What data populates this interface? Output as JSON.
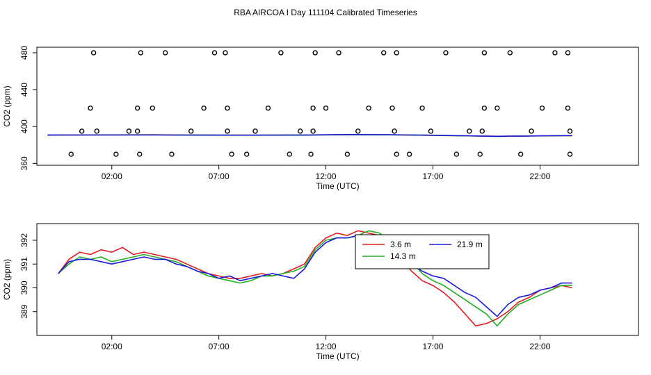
{
  "title": "RBA AIRCOA I  Day 111104  Calibrated Timeseries",
  "colors": {
    "red": "#e41a1c",
    "green": "#1fae1f",
    "blue": "#1a1adc"
  },
  "chart_data": [
    {
      "type": "scatter",
      "xlabel": "Time (UTC)",
      "ylabel": "CO2 (ppm)",
      "xlim": [
        -1.5,
        26.6
      ],
      "ylim": [
        358,
        486
      ],
      "x_ticks": [
        2,
        7,
        12,
        17,
        22
      ],
      "x_tick_labels": [
        "02:00",
        "07:00",
        "12:00",
        "17:00",
        "22:00"
      ],
      "y_ticks": [
        360,
        400,
        440,
        480
      ],
      "y_tick_labels": [
        "360",
        "400",
        "440",
        "480"
      ],
      "grid": false,
      "points": [
        [
          0.1,
          370
        ],
        [
          0.6,
          395
        ],
        [
          1.0,
          420
        ],
        [
          1.15,
          480
        ],
        [
          1.3,
          395
        ],
        [
          2.2,
          370
        ],
        [
          2.8,
          395
        ],
        [
          3.2,
          395
        ],
        [
          3.2,
          420
        ],
        [
          3.3,
          370
        ],
        [
          3.35,
          480
        ],
        [
          3.9,
          420
        ],
        [
          4.5,
          480
        ],
        [
          4.8,
          370
        ],
        [
          5.7,
          395
        ],
        [
          6.3,
          420
        ],
        [
          6.8,
          480
        ],
        [
          7.3,
          480
        ],
        [
          7.4,
          420
        ],
        [
          7.4,
          395
        ],
        [
          7.6,
          370
        ],
        [
          8.3,
          370
        ],
        [
          8.7,
          395
        ],
        [
          9.3,
          420
        ],
        [
          9.9,
          480
        ],
        [
          10.3,
          370
        ],
        [
          10.8,
          395
        ],
        [
          11.3,
          370
        ],
        [
          11.4,
          420
        ],
        [
          11.4,
          395
        ],
        [
          11.5,
          480
        ],
        [
          12.0,
          420
        ],
        [
          12.6,
          480
        ],
        [
          13.0,
          370
        ],
        [
          13.5,
          395
        ],
        [
          14.0,
          420
        ],
        [
          14.7,
          480
        ],
        [
          15.1,
          420
        ],
        [
          15.2,
          395
        ],
        [
          15.3,
          480
        ],
        [
          15.3,
          370
        ],
        [
          15.9,
          370
        ],
        [
          16.5,
          420
        ],
        [
          16.9,
          395
        ],
        [
          17.6,
          480
        ],
        [
          18.1,
          370
        ],
        [
          18.7,
          395
        ],
        [
          19.2,
          370
        ],
        [
          19.3,
          395
        ],
        [
          19.4,
          420
        ],
        [
          19.4,
          480
        ],
        [
          20.0,
          420
        ],
        [
          20.6,
          480
        ],
        [
          21.1,
          370
        ],
        [
          21.6,
          395
        ],
        [
          22.1,
          420
        ],
        [
          22.7,
          480
        ],
        [
          23.3,
          480
        ],
        [
          23.3,
          420
        ],
        [
          23.4,
          395
        ],
        [
          23.4,
          370
        ]
      ],
      "series": [
        {
          "color": "red",
          "x": [
            -1,
            4,
            8,
            11,
            13,
            15,
            17,
            20,
            23.5
          ],
          "y": [
            390.8,
            391.0,
            390.7,
            390.8,
            391.2,
            391.0,
            390.4,
            389.5,
            390.1
          ]
        },
        {
          "color": "green",
          "x": [
            -1,
            4,
            8,
            11,
            13,
            15,
            17,
            20,
            23.5
          ],
          "y": [
            390.8,
            391.0,
            390.6,
            390.7,
            391.1,
            391.0,
            390.5,
            389.3,
            390.2
          ]
        },
        {
          "color": "blue",
          "x": [
            -1,
            4,
            8,
            11,
            13,
            15,
            17,
            20,
            23.5
          ],
          "y": [
            390.8,
            390.9,
            390.6,
            390.8,
            391.3,
            391.1,
            390.6,
            389.4,
            390.2
          ]
        }
      ]
    },
    {
      "type": "line",
      "xlabel": "Time (UTC)",
      "ylabel": "CO2 (ppm)",
      "xlim": [
        -1.5,
        26.6
      ],
      "ylim": [
        388,
        392.7
      ],
      "x_ticks": [
        2,
        7,
        12,
        17,
        22
      ],
      "x_tick_labels": [
        "02:00",
        "07:00",
        "12:00",
        "17:00",
        "22:00"
      ],
      "y_ticks": [
        389,
        390,
        391,
        392
      ],
      "y_tick_labels": [
        "389",
        "390",
        "391",
        "392"
      ],
      "grid": false,
      "legend": {
        "placement": "top-right-center"
      },
      "series": [
        {
          "name": "3.6 m",
          "color": "red",
          "x": [
            -0.5,
            0,
            0.5,
            1,
            1.5,
            2,
            2.5,
            3,
            3.5,
            4,
            4.5,
            5,
            5.5,
            6,
            6.5,
            7,
            7.5,
            8,
            8.5,
            9,
            9.5,
            10,
            10.5,
            11,
            11.5,
            12,
            12.5,
            13,
            13.5,
            14,
            14.5,
            15,
            15.5,
            16,
            16.5,
            17,
            17.5,
            18,
            18.5,
            19,
            19.5,
            20,
            20.5,
            21,
            21.5,
            22,
            22.5,
            23,
            23.5
          ],
          "y": [
            390.6,
            391.2,
            391.5,
            391.4,
            391.6,
            391.5,
            391.7,
            391.4,
            391.5,
            391.4,
            391.3,
            391.2,
            391.0,
            390.8,
            390.6,
            390.5,
            390.4,
            390.4,
            390.5,
            390.6,
            390.5,
            390.6,
            390.8,
            391.0,
            391.7,
            392.1,
            392.3,
            392.2,
            392.4,
            392.3,
            392.2,
            391.8,
            391.2,
            390.7,
            390.3,
            390.1,
            389.8,
            389.4,
            388.9,
            388.4,
            388.5,
            388.7,
            389.0,
            389.4,
            389.6,
            389.9,
            390.0,
            390.1,
            390.0
          ]
        },
        {
          "name": "14.3 m",
          "color": "green",
          "x": [
            -0.5,
            0,
            0.5,
            1,
            1.5,
            2,
            2.5,
            3,
            3.5,
            4,
            4.5,
            5,
            5.5,
            6,
            6.5,
            7,
            7.5,
            8,
            8.5,
            9,
            9.5,
            10,
            10.5,
            11,
            11.5,
            12,
            12.5,
            13,
            13.5,
            14,
            14.5,
            15,
            15.5,
            16,
            16.5,
            17,
            17.5,
            18,
            18.5,
            19,
            19.5,
            20,
            20.5,
            21,
            21.5,
            22,
            22.5,
            23,
            23.5
          ],
          "y": [
            390.6,
            391.0,
            391.3,
            391.2,
            391.3,
            391.1,
            391.2,
            391.3,
            391.4,
            391.3,
            391.2,
            391.1,
            390.9,
            390.7,
            390.5,
            390.4,
            390.3,
            390.2,
            390.3,
            390.5,
            390.5,
            390.6,
            390.7,
            390.9,
            391.6,
            392.0,
            392.1,
            392.1,
            392.2,
            392.4,
            392.3,
            392.0,
            391.6,
            391.1,
            390.6,
            390.3,
            390.1,
            389.8,
            389.5,
            389.2,
            388.9,
            388.4,
            388.9,
            389.3,
            389.5,
            389.7,
            389.9,
            390.1,
            390.1
          ]
        },
        {
          "name": "21.9 m",
          "color": "blue",
          "x": [
            -0.5,
            0,
            0.5,
            1,
            1.5,
            2,
            2.5,
            3,
            3.5,
            4,
            4.5,
            5,
            5.5,
            6,
            6.5,
            7,
            7.5,
            8,
            8.5,
            9,
            9.5,
            10,
            10.5,
            11,
            11.5,
            12,
            12.5,
            13,
            13.5,
            14,
            14.5,
            15,
            15.5,
            16,
            16.5,
            17,
            17.5,
            18,
            18.5,
            19,
            19.5,
            20,
            20.5,
            21,
            21.5,
            22,
            22.5,
            23,
            23.5
          ],
          "y": [
            390.6,
            391.1,
            391.2,
            391.2,
            391.1,
            391.0,
            391.1,
            391.2,
            391.3,
            391.2,
            391.2,
            391.0,
            390.9,
            390.7,
            390.6,
            390.4,
            390.5,
            390.3,
            390.4,
            390.5,
            390.6,
            390.5,
            390.4,
            390.8,
            391.5,
            391.9,
            392.1,
            392.1,
            392.2,
            392.1,
            392.0,
            391.8,
            391.4,
            391.0,
            390.7,
            390.5,
            390.4,
            390.1,
            389.8,
            389.6,
            389.2,
            388.8,
            389.3,
            389.6,
            389.7,
            389.9,
            390.0,
            390.2,
            390.2
          ]
        }
      ]
    }
  ]
}
